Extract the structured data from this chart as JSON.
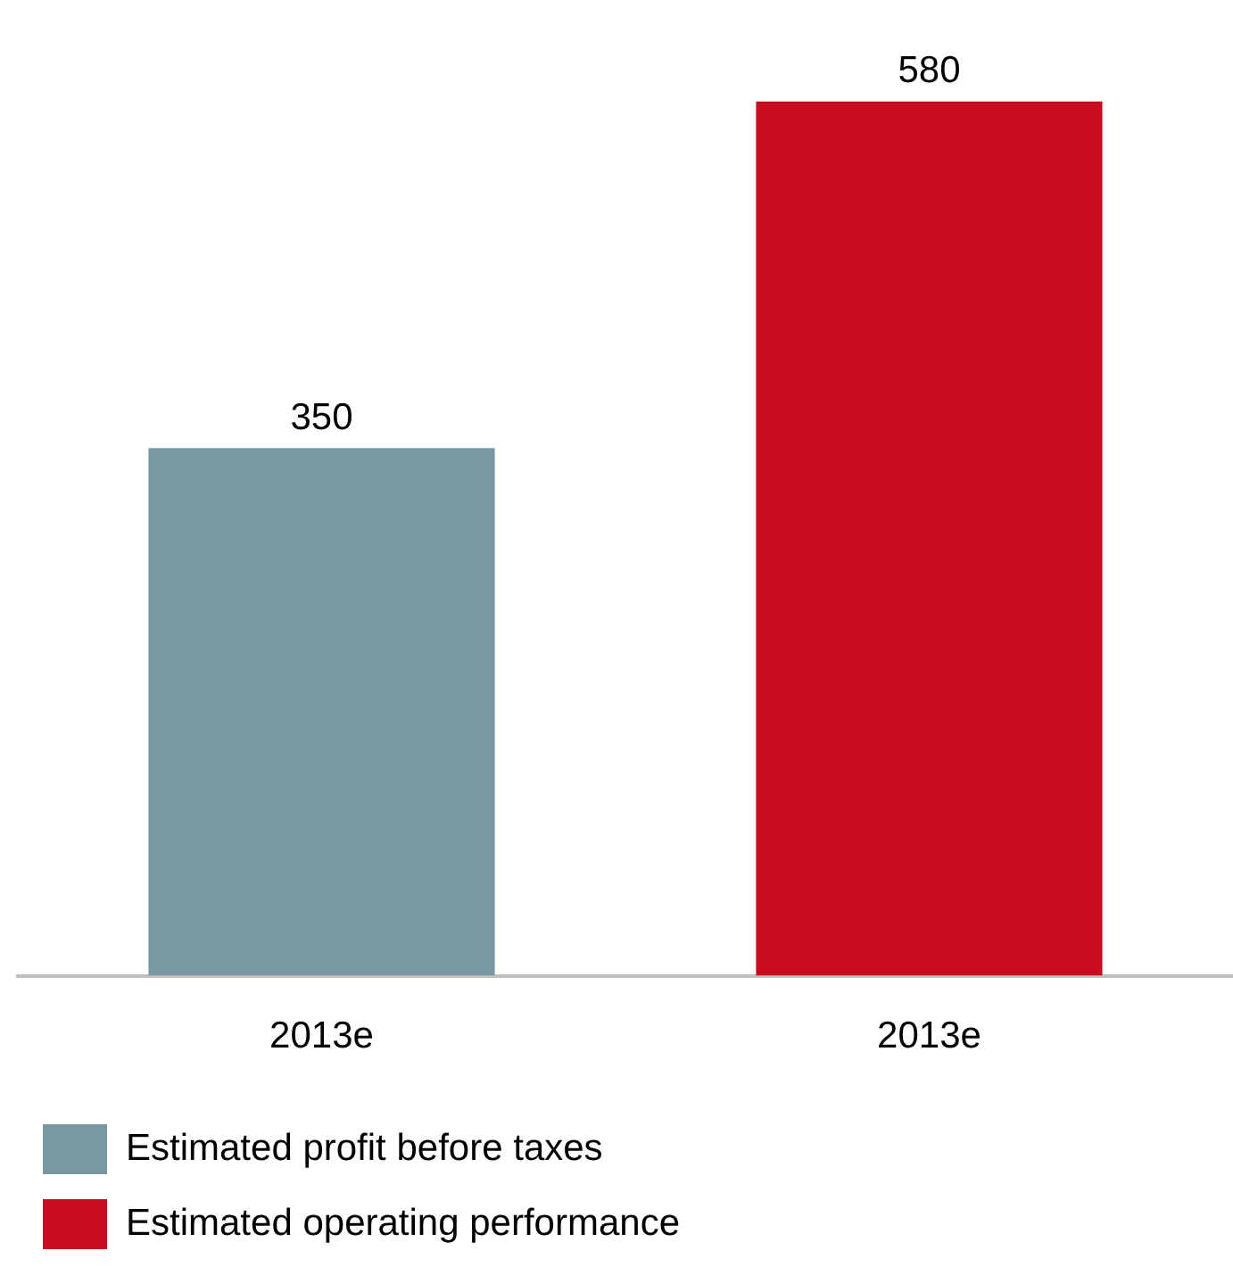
{
  "chart_data": {
    "type": "bar",
    "categories": [
      "2013e",
      "2013e"
    ],
    "series": [
      {
        "name": "Estimated profit before taxes",
        "color": "#7899a3",
        "values": [
          350,
          null
        ]
      },
      {
        "name": "Estimated operating performance",
        "color": "#c80c1f",
        "values": [
          null,
          580
        ]
      }
    ],
    "data_labels": true,
    "legend": "bottom left",
    "grid": false
  }
}
